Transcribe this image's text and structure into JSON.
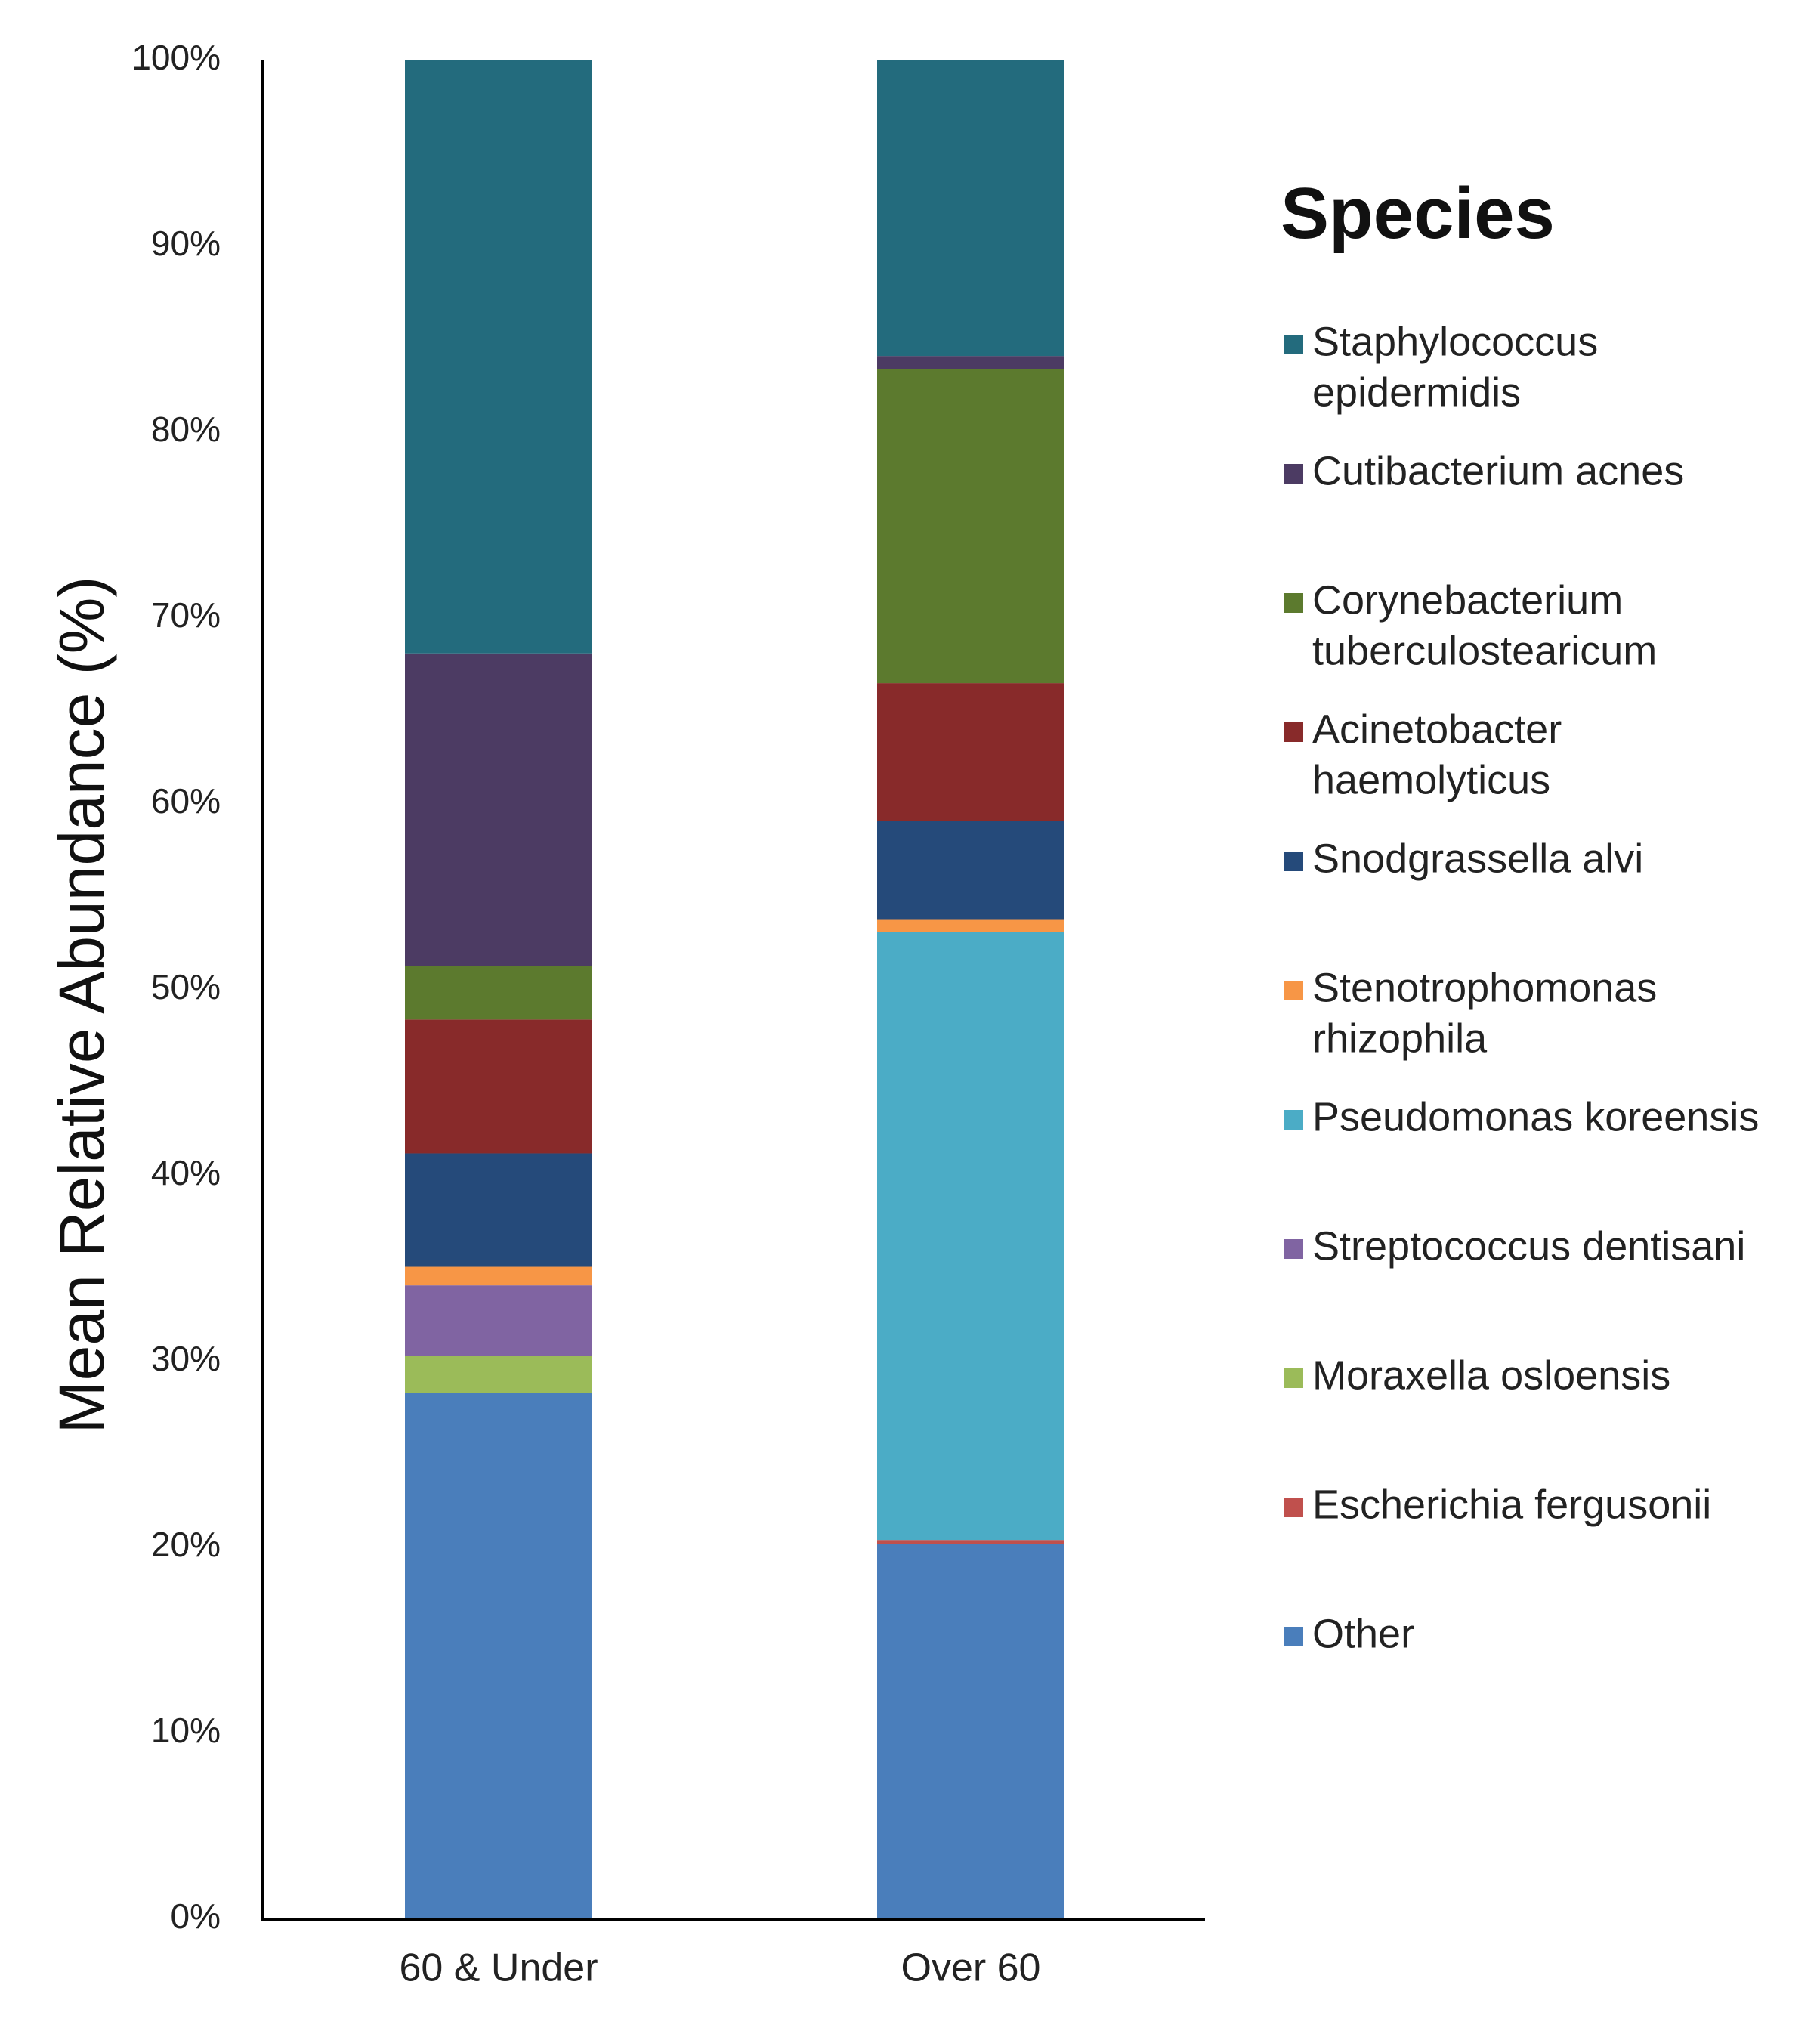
{
  "chart_data": {
    "type": "bar",
    "stacked": true,
    "categories": [
      "60 & Under",
      "Over 60"
    ],
    "ylabel": "Mean Relative Abundance (%)",
    "xlabel": "",
    "ylim": [
      0,
      100
    ],
    "yticks": [
      "0%",
      "10%",
      "20%",
      "30%",
      "40%",
      "50%",
      "60%",
      "70%",
      "80%",
      "90%",
      "100%"
    ],
    "grid": false,
    "legend_title": "Species",
    "legend_position": "right",
    "series": [
      {
        "name": "Other",
        "legend_lines": [
          "Other"
        ],
        "color": "#4a7ebb",
        "values": [
          28.3,
          20.2
        ]
      },
      {
        "name": "Escherichia fergusonii",
        "legend_lines": [
          "Escherichia fergusonii"
        ],
        "color": "#c0504d",
        "values": [
          0.0,
          0.2
        ]
      },
      {
        "name": "Moraxella osloensis",
        "legend_lines": [
          "Moraxella osloensis"
        ],
        "color": "#9bbb59",
        "values": [
          2.0,
          0.0
        ]
      },
      {
        "name": "Streptococcus dentisani",
        "legend_lines": [
          "Streptococcus dentisani"
        ],
        "color": "#8064a2",
        "values": [
          3.8,
          0.0
        ]
      },
      {
        "name": "Pseudomonas koreensis",
        "legend_lines": [
          "Pseudomonas koreensis"
        ],
        "color": "#4bacc6",
        "values": [
          0.0,
          32.7
        ]
      },
      {
        "name": "Stenotrophomonas rhizophila",
        "legend_lines": [
          "Stenotrophomonas",
          "rhizophila"
        ],
        "color": "#f79646",
        "values": [
          1.0,
          0.7
        ]
      },
      {
        "name": "Snodgrassella alvi",
        "legend_lines": [
          "Snodgrassella alvi"
        ],
        "color": "#254a7a",
        "values": [
          6.1,
          5.3
        ]
      },
      {
        "name": "Acinetobacter haemolyticus",
        "legend_lines": [
          "Acinetobacter",
          "haemolyticus"
        ],
        "color": "#882a2a",
        "values": [
          7.2,
          7.4
        ]
      },
      {
        "name": "Corynebacterium tuberculostearicum",
        "legend_lines": [
          "Corynebacterium",
          "tuberculostearicum"
        ],
        "color": "#5c7a2e",
        "values": [
          2.9,
          16.9
        ]
      },
      {
        "name": "Cutibacterium acnes",
        "legend_lines": [
          "Cutibacterium acnes"
        ],
        "color": "#4c3b63",
        "values": [
          16.8,
          0.7
        ]
      },
      {
        "name": "Staphylococcus epidermidis",
        "legend_lines": [
          "Staphylococcus",
          "epidermidis"
        ],
        "color": "#236b7d",
        "values": [
          31.9,
          15.9
        ]
      }
    ],
    "legend_order": [
      "Staphylococcus epidermidis",
      "Cutibacterium acnes",
      "Corynebacterium tuberculostearicum",
      "Acinetobacter haemolyticus",
      "Snodgrassella alvi",
      "Stenotrophomonas rhizophila",
      "Pseudomonas koreensis",
      "Streptococcus dentisani",
      "Moraxella osloensis",
      "Escherichia fergusonii",
      "Other"
    ]
  }
}
